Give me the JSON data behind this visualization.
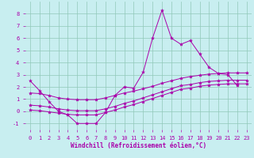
{
  "title": "",
  "xlabel": "Windchill (Refroidissement éolien,°C)",
  "ylabel": "",
  "xlim": [
    -0.5,
    23.5
  ],
  "ylim": [
    -1.5,
    9.0
  ],
  "yticks": [
    -1,
    0,
    1,
    2,
    3,
    4,
    5,
    6,
    7,
    8
  ],
  "xticks": [
    0,
    1,
    2,
    3,
    4,
    5,
    6,
    7,
    8,
    9,
    10,
    11,
    12,
    13,
    14,
    15,
    16,
    17,
    18,
    19,
    20,
    21,
    22,
    23
  ],
  "background_color": "#c8eef0",
  "grid_color": "#90c8b8",
  "line_color": "#aa00aa",
  "series": [
    {
      "x": [
        0,
        1,
        2,
        3,
        4,
        5,
        6,
        7,
        8,
        9,
        10,
        11,
        12,
        13,
        14,
        15,
        16,
        17,
        18,
        19,
        20,
        21,
        22
      ],
      "y": [
        2.5,
        1.7,
        0.8,
        0.0,
        -0.3,
        -1.0,
        -1.0,
        -1.0,
        -0.1,
        1.3,
        2.0,
        1.9,
        3.2,
        6.0,
        8.3,
        6.0,
        5.5,
        5.8,
        4.7,
        3.6,
        3.1,
        3.0,
        2.1
      ]
    },
    {
      "x": [
        0,
        1,
        2,
        3,
        4,
        5,
        6,
        7,
        8,
        9,
        10,
        11,
        12,
        13,
        14,
        15,
        16,
        17,
        18,
        19,
        20,
        21,
        22,
        23
      ],
      "y": [
        1.5,
        1.45,
        1.3,
        1.1,
        1.0,
        0.95,
        0.95,
        0.95,
        1.1,
        1.3,
        1.5,
        1.65,
        1.85,
        2.05,
        2.3,
        2.5,
        2.7,
        2.85,
        2.95,
        3.05,
        3.1,
        3.15,
        3.15,
        3.15
      ]
    },
    {
      "x": [
        0,
        1,
        2,
        3,
        4,
        5,
        6,
        7,
        8,
        9,
        10,
        11,
        12,
        13,
        14,
        15,
        16,
        17,
        18,
        19,
        20,
        21,
        22,
        23
      ],
      "y": [
        0.5,
        0.45,
        0.35,
        0.2,
        0.1,
        0.05,
        0.05,
        0.05,
        0.2,
        0.4,
        0.65,
        0.85,
        1.1,
        1.35,
        1.6,
        1.85,
        2.1,
        2.2,
        2.35,
        2.45,
        2.5,
        2.55,
        2.55,
        2.55
      ]
    },
    {
      "x": [
        0,
        1,
        2,
        3,
        4,
        5,
        6,
        7,
        8,
        9,
        10,
        11,
        12,
        13,
        14,
        15,
        16,
        17,
        18,
        19,
        20,
        21,
        22,
        23
      ],
      "y": [
        0.1,
        0.05,
        -0.05,
        -0.15,
        -0.25,
        -0.3,
        -0.3,
        -0.3,
        -0.1,
        0.1,
        0.35,
        0.55,
        0.8,
        1.05,
        1.3,
        1.55,
        1.8,
        1.9,
        2.05,
        2.15,
        2.2,
        2.25,
        2.25,
        2.25
      ]
    }
  ]
}
